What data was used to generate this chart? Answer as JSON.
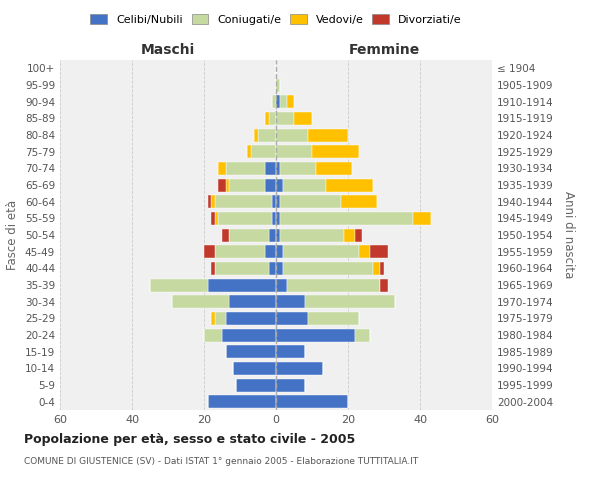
{
  "age_groups": [
    "100+",
    "95-99",
    "90-94",
    "85-89",
    "80-84",
    "75-79",
    "70-74",
    "65-69",
    "60-64",
    "55-59",
    "50-54",
    "45-49",
    "40-44",
    "35-39",
    "30-34",
    "25-29",
    "20-24",
    "15-19",
    "10-14",
    "5-9",
    "0-4"
  ],
  "birth_years": [
    "≤ 1904",
    "1905-1909",
    "1910-1914",
    "1915-1919",
    "1920-1924",
    "1925-1929",
    "1930-1934",
    "1935-1939",
    "1940-1944",
    "1945-1949",
    "1950-1954",
    "1955-1959",
    "1960-1964",
    "1965-1969",
    "1970-1974",
    "1975-1979",
    "1980-1984",
    "1985-1989",
    "1990-1994",
    "1995-1999",
    "2000-2004"
  ],
  "males": {
    "celibi": [
      0,
      0,
      0,
      0,
      0,
      0,
      3,
      3,
      1,
      1,
      2,
      3,
      2,
      19,
      13,
      14,
      15,
      14,
      12,
      11,
      19
    ],
    "coniugati": [
      0,
      0,
      1,
      2,
      5,
      7,
      11,
      10,
      16,
      15,
      11,
      14,
      15,
      16,
      16,
      3,
      5,
      0,
      0,
      0,
      0
    ],
    "vedovi": [
      0,
      0,
      0,
      1,
      1,
      1,
      2,
      1,
      1,
      1,
      0,
      0,
      0,
      0,
      0,
      1,
      0,
      0,
      0,
      0,
      0
    ],
    "divorziati": [
      0,
      0,
      0,
      0,
      0,
      0,
      0,
      2,
      1,
      1,
      2,
      3,
      1,
      0,
      0,
      0,
      0,
      0,
      0,
      0,
      0
    ]
  },
  "females": {
    "nubili": [
      0,
      0,
      1,
      0,
      0,
      0,
      1,
      2,
      1,
      1,
      1,
      2,
      2,
      3,
      8,
      9,
      22,
      8,
      13,
      8,
      20
    ],
    "coniugate": [
      0,
      1,
      2,
      5,
      9,
      10,
      10,
      12,
      17,
      37,
      18,
      21,
      25,
      26,
      25,
      14,
      4,
      0,
      0,
      0,
      0
    ],
    "vedove": [
      0,
      0,
      2,
      5,
      11,
      13,
      10,
      13,
      10,
      5,
      3,
      3,
      2,
      0,
      0,
      0,
      0,
      0,
      0,
      0,
      0
    ],
    "divorziate": [
      0,
      0,
      0,
      0,
      0,
      0,
      0,
      0,
      0,
      0,
      2,
      5,
      1,
      2,
      0,
      0,
      0,
      0,
      0,
      0,
      0
    ]
  },
  "colors": {
    "celibi_nubili": "#4472c4",
    "coniugati_e": "#c5d9a0",
    "vedovi_e": "#ffc000",
    "divorziati_e": "#c0392b"
  },
  "xlim": 60,
  "title": "Popolazione per età, sesso e stato civile - 2005",
  "subtitle": "COMUNE DI GIUSTENICE (SV) - Dati ISTAT 1° gennaio 2005 - Elaborazione TUTTITALIA.IT",
  "xlabel_left": "Maschi",
  "xlabel_right": "Femmine",
  "ylabel_left": "Fasce di età",
  "ylabel_right": "Anni di nascita",
  "legend_labels": [
    "Celibi/Nubili",
    "Coniugati/e",
    "Vedovi/e",
    "Divorziati/e"
  ],
  "bg_color": "#f0f0f0"
}
